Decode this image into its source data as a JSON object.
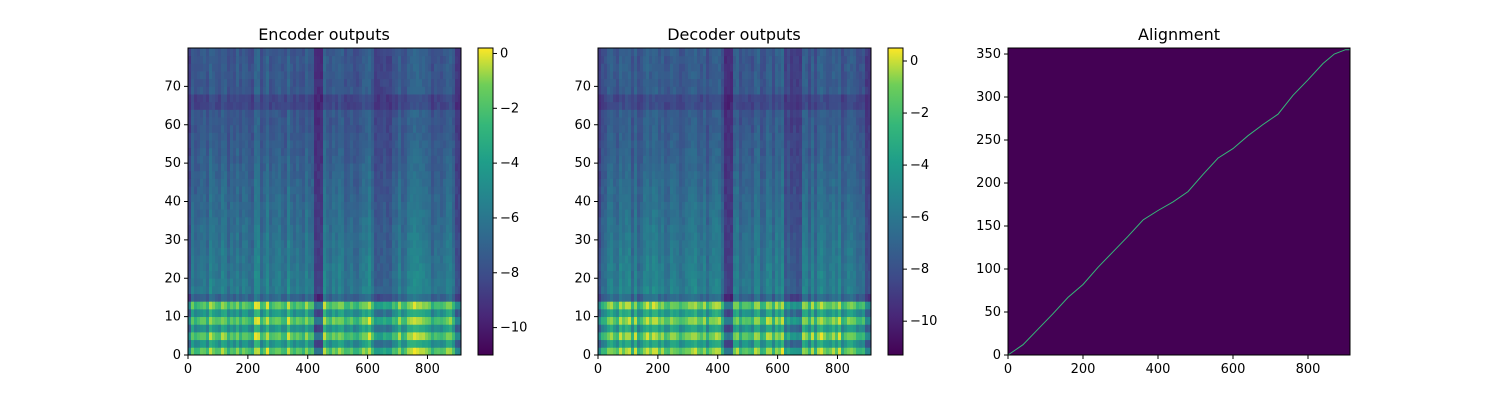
{
  "chart_data": [
    {
      "type": "heatmap",
      "title": "Encoder outputs",
      "xlim": [
        0,
        912
      ],
      "ylim": [
        0,
        80
      ],
      "xticks": [
        0,
        200,
        400,
        600,
        800
      ],
      "yticks": [
        0,
        10,
        20,
        30,
        40,
        50,
        60,
        70
      ],
      "colorbar": {
        "colormap": "viridis",
        "range": [
          -11,
          0.2
        ],
        "ticks": [
          0,
          -2,
          -4,
          -6,
          -8,
          -10
        ]
      }
    },
    {
      "type": "heatmap",
      "title": "Decoder outputs",
      "xlim": [
        0,
        912
      ],
      "ylim": [
        0,
        80
      ],
      "xticks": [
        0,
        200,
        400,
        600,
        800
      ],
      "yticks": [
        0,
        10,
        20,
        30,
        40,
        50,
        60,
        70
      ],
      "colorbar": {
        "colormap": "viridis",
        "range": [
          -11.3,
          0.5
        ],
        "ticks": [
          0,
          -2,
          -4,
          -6,
          -8,
          -10
        ]
      }
    },
    {
      "type": "line",
      "title": "Alignment",
      "xlim": [
        0,
        912
      ],
      "ylim": [
        0,
        357
      ],
      "xticks": [
        0,
        200,
        400,
        600,
        800
      ],
      "yticks": [
        0,
        50,
        100,
        150,
        200,
        250,
        300,
        350
      ],
      "background_color": "#440154",
      "line_color": "#35b779",
      "series": [
        {
          "x": [
            0,
            40,
            80,
            120,
            160,
            200,
            240,
            280,
            320,
            360,
            400,
            440,
            480,
            520,
            560,
            600,
            640,
            680,
            720,
            760,
            800,
            840,
            870,
            900,
            912
          ],
          "values": [
            0,
            12,
            30,
            48,
            67,
            82,
            102,
            120,
            138,
            157,
            168,
            178,
            190,
            210,
            229,
            240,
            255,
            268,
            280,
            302,
            320,
            339,
            350,
            355,
            355
          ]
        }
      ]
    }
  ]
}
